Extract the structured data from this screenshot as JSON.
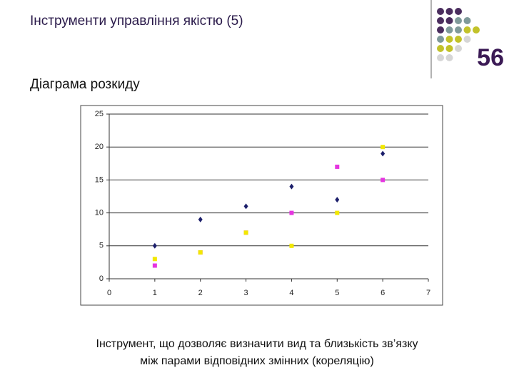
{
  "header": {
    "title": "Інструменти управління якістю (5)",
    "slide_number": "56"
  },
  "subtitle": "Діаграма розкиду",
  "chart_data": {
    "type": "scatter",
    "xlim": [
      0,
      7
    ],
    "xticks": [
      0,
      1,
      2,
      3,
      4,
      5,
      6,
      7
    ],
    "ylim": [
      0,
      25
    ],
    "yticks": [
      0,
      5,
      10,
      15,
      20,
      25
    ],
    "grid": true,
    "series": [
      {
        "color": "#1c1f6b",
        "marker": "diamond",
        "x": [
          1,
          2,
          3,
          4,
          5,
          6
        ],
        "values": [
          5,
          9,
          11,
          14,
          12,
          19
        ]
      },
      {
        "color": "#e535e0",
        "marker": "square",
        "x": [
          1,
          2,
          3,
          4,
          5,
          6
        ],
        "values": [
          2,
          4,
          7,
          10,
          17,
          15
        ]
      },
      {
        "color": "#f2e800",
        "marker": "square",
        "x": [
          1,
          2,
          3,
          4,
          5,
          6
        ],
        "values": [
          3,
          4,
          7,
          5,
          10,
          20
        ]
      }
    ]
  },
  "caption": [
    "Інструмент, що дозволяє визначити вид та близькість зв’язку",
    "між парами відповідних змінних (кореляцію)"
  ]
}
